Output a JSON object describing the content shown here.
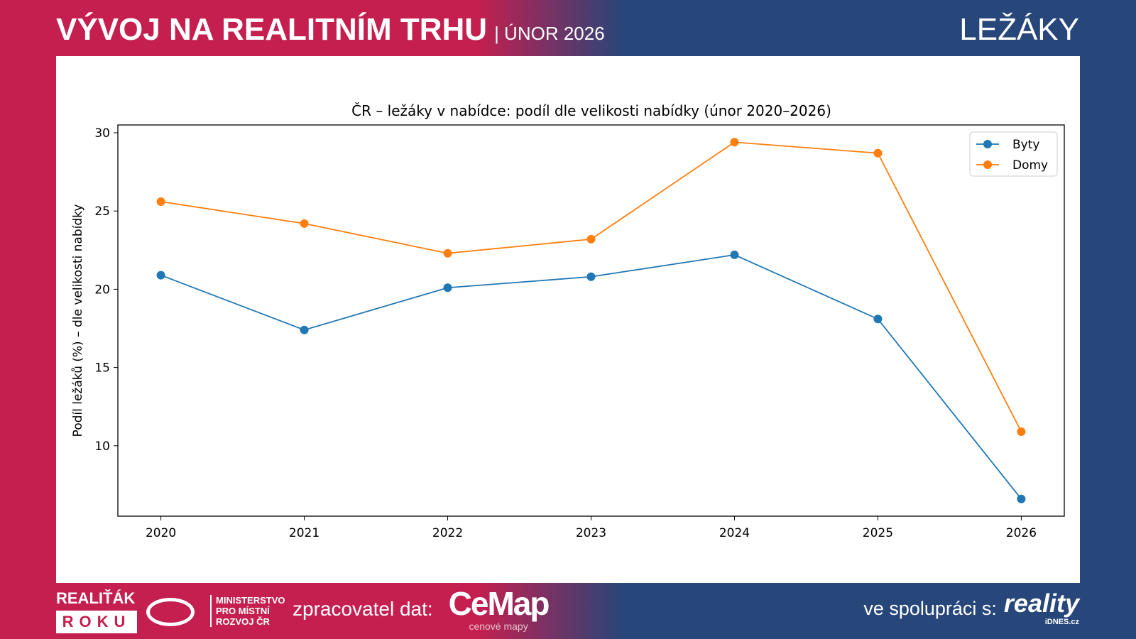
{
  "header": {
    "title": "VÝVOJ NA REALITNÍM TRHU",
    "subtitle": "| ÚNOR 2026",
    "section": "LEŽÁKY"
  },
  "footer": {
    "award_top": "REALIŤÁK",
    "award_bottom": "ROKU",
    "ministry": [
      "MINISTERSTVO",
      "PRO MÍSTNÍ",
      "ROZVOJ ČR"
    ],
    "processor_label": "zpracovatel dat:",
    "processor_logo": "CeMap",
    "processor_logo_sub": "cenové mapy",
    "partner_label": "ve spolupráci s:",
    "partner_logo": "reality",
    "partner_logo_sub": "iDNES.cz"
  },
  "chart_data": {
    "type": "line",
    "title": "ČR – ležáky v nabídce: podíl dle velikosti nabídky (únor 2020–2026)",
    "xlabel": "",
    "ylabel": "Podíl ležáků (%) – dle velikosti nabídky",
    "x": [
      2020,
      2021,
      2022,
      2023,
      2024,
      2025,
      2026
    ],
    "x_ticks": [
      "2020",
      "2021",
      "2022",
      "2023",
      "2024",
      "2025",
      "2026"
    ],
    "y_ticks": [
      "10",
      "15",
      "20",
      "25",
      "30"
    ],
    "ylim": [
      5.5,
      30.5
    ],
    "xlim": [
      2019.7,
      2026.3
    ],
    "grid": false,
    "legend": "top-right",
    "series": [
      {
        "name": "Byty",
        "color": "#1f77b4",
        "values": [
          20.9,
          17.4,
          20.1,
          20.8,
          22.2,
          18.1,
          6.6
        ]
      },
      {
        "name": "Domy",
        "color": "#ff7f0e",
        "values": [
          25.6,
          24.2,
          22.3,
          23.2,
          29.4,
          28.7,
          10.9
        ]
      }
    ]
  }
}
